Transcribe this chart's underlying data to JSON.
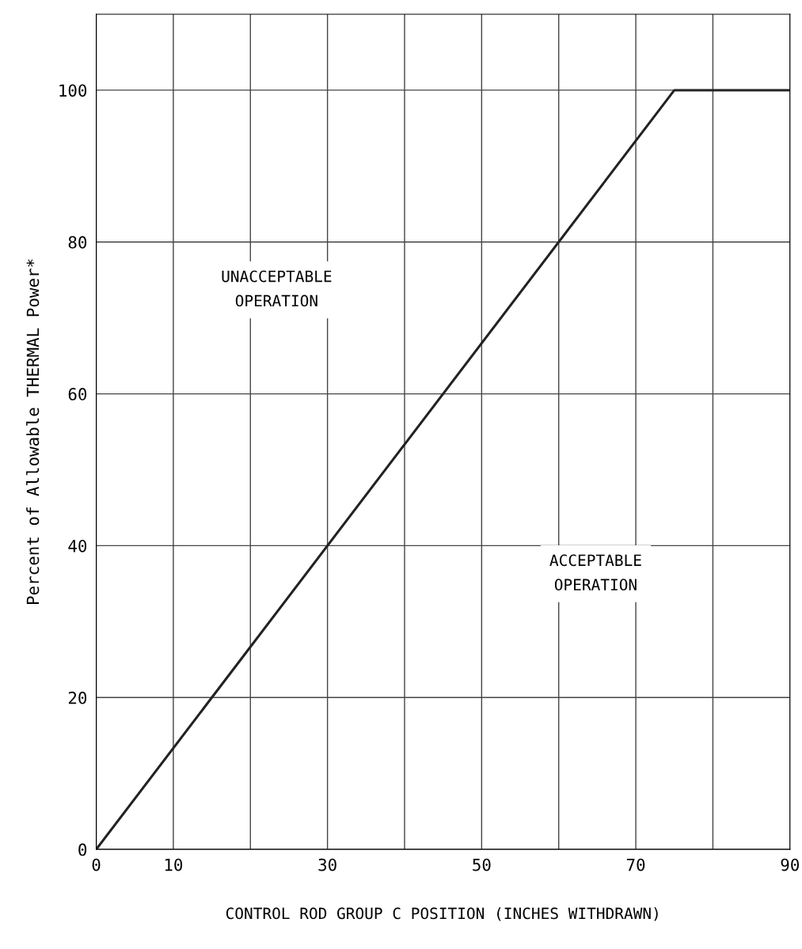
{
  "chart_data": {
    "type": "line",
    "xlabel": "CONTROL ROD GROUP C POSITION (INCHES WITHDRAWN)",
    "ylabel": "Percent of Allowable THERMAL Power*",
    "x": [
      0,
      75,
      90
    ],
    "series": [
      {
        "color": "#222222",
        "values": [
          0,
          100,
          100
        ]
      }
    ],
    "xlim": [
      0,
      90
    ],
    "xticks": [
      0,
      10,
      {
        "value": 20,
        "label": null
      },
      30,
      {
        "value": 40,
        "label": null
      },
      50,
      {
        "value": 60,
        "label": null
      },
      70,
      {
        "value": 80,
        "label": null
      },
      90
    ],
    "ylim": [
      0,
      110
    ],
    "yticks": [
      0,
      20,
      40,
      60,
      80,
      100
    ],
    "grid": true,
    "marker": "none",
    "line_style": "solid",
    "annotations": [
      "UNACCEPTABLE\nOPERATION",
      "ACCEPTABLE\nOPERATION"
    ]
  }
}
